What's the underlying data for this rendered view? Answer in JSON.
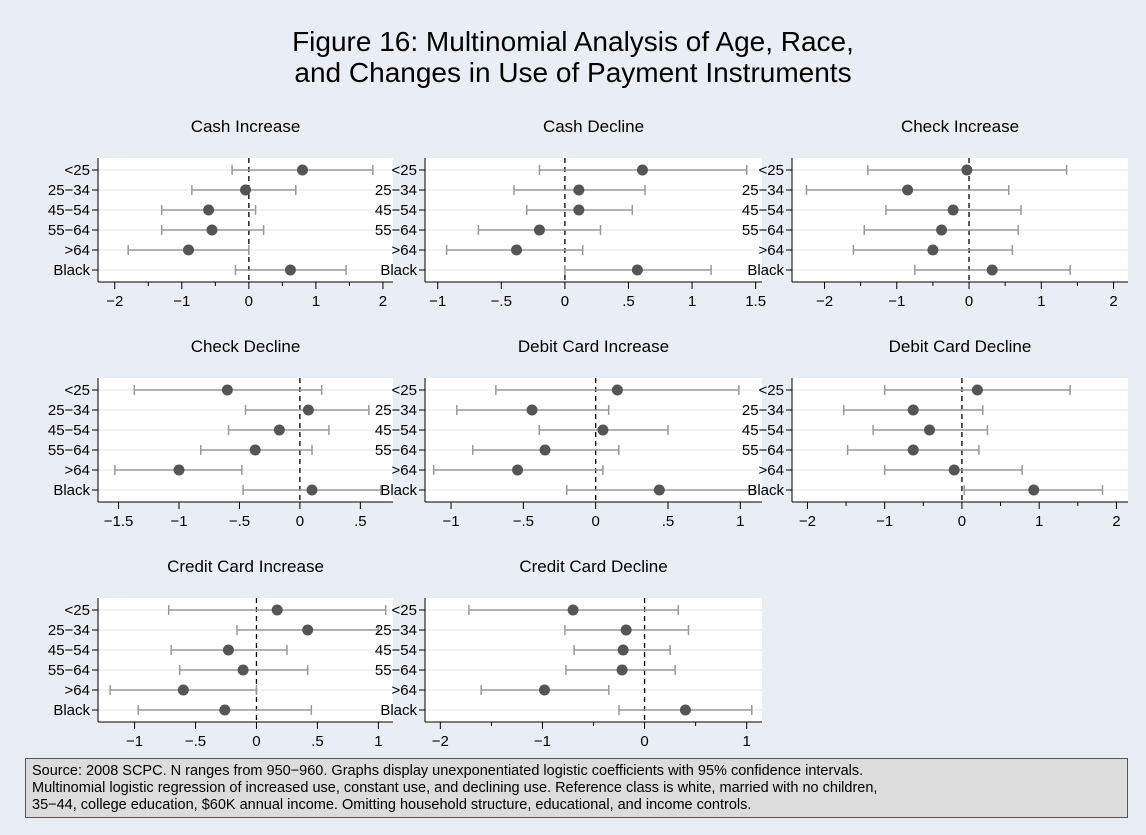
{
  "title": [
    "Figure 16: Multinomial Analysis of Age, Race,",
    "and Changes in Use of Payment Instruments"
  ],
  "note": [
    "Source: 2008 SCPC.  N ranges from 950−960. Graphs display unexponentiated logistic coefficients with 95% confidence intervals.",
    "Multinomial logistic regression of increased use, constant use, and declining use.  Reference class is white, married with no children,",
    "35−44, college education, $60K annual income.  Omitting household structure, educational, and income controls."
  ],
  "colors": {
    "background": "#e8eef3",
    "plot_bg": "#ffffff",
    "marker": "#555555",
    "ci": "#999999",
    "gridline": "#e6e6e6",
    "note_bg": "#dcdcdc"
  },
  "chart_data": [
    {
      "type": "scatter",
      "title": "Cash Increase",
      "categories": [
        "<25",
        "25−34",
        "45−54",
        "55−64",
        ">64",
        "Black"
      ],
      "estimate": [
        0.8,
        -0.05,
        -0.6,
        -0.55,
        -0.9,
        0.62
      ],
      "ci_low": [
        -0.25,
        -0.85,
        -1.3,
        -1.3,
        -1.8,
        -0.2
      ],
      "ci_high": [
        1.85,
        0.7,
        0.1,
        0.22,
        0.0,
        1.45
      ],
      "xlim": [
        -2.25,
        2.15
      ],
      "xticks": [
        -2,
        -1,
        0,
        1,
        2
      ],
      "xticklabels": [
        "−2",
        "−1",
        "0",
        "1",
        "2"
      ],
      "minor_ticks": true
    },
    {
      "type": "scatter",
      "title": "Cash Decline",
      "categories": [
        "<25",
        "25−34",
        "45−54",
        "55−64",
        ">64",
        "Black"
      ],
      "estimate": [
        0.61,
        0.11,
        0.11,
        -0.2,
        -0.38,
        0.57
      ],
      "ci_low": [
        -0.2,
        -0.4,
        -0.3,
        -0.68,
        -0.93,
        0.0
      ],
      "ci_high": [
        1.43,
        0.63,
        0.53,
        0.28,
        0.14,
        1.15
      ],
      "xlim": [
        -1.1,
        1.55
      ],
      "xticks": [
        -1,
        -0.5,
        0,
        0.5,
        1,
        1.5
      ],
      "xticklabels": [
        "−1",
        "−.5",
        "0",
        ".5",
        "1",
        "1.5"
      ],
      "minor_ticks": false
    },
    {
      "type": "scatter",
      "title": "Check Increase",
      "categories": [
        "<25",
        "25−34",
        "45−54",
        "55−64",
        ">64",
        "Black"
      ],
      "estimate": [
        -0.03,
        -0.85,
        -0.22,
        -0.38,
        -0.5,
        0.32
      ],
      "ci_low": [
        -1.4,
        -2.25,
        -1.15,
        -1.45,
        -1.6,
        -0.75
      ],
      "ci_high": [
        1.35,
        0.55,
        0.72,
        0.68,
        0.6,
        1.4
      ],
      "xlim": [
        -2.45,
        2.2
      ],
      "xticks": [
        -2,
        -1,
        0,
        1,
        2
      ],
      "xticklabels": [
        "−2",
        "−1",
        "0",
        "1",
        "2"
      ],
      "minor_ticks": true
    },
    {
      "type": "scatter",
      "title": "Check Decline",
      "categories": [
        "<25",
        "25−34",
        "45−54",
        "55−64",
        ">64",
        "Black"
      ],
      "estimate": [
        -0.6,
        0.07,
        -0.17,
        -0.37,
        -1.0,
        0.1
      ],
      "ci_low": [
        -1.37,
        -0.45,
        -0.59,
        -0.82,
        -1.53,
        -0.47
      ],
      "ci_high": [
        0.18,
        0.57,
        0.24,
        0.1,
        -0.48,
        0.67
      ],
      "xlim": [
        -1.67,
        0.77
      ],
      "xticks": [
        -1.5,
        -1,
        -0.5,
        0,
        0.5
      ],
      "xticklabels": [
        "−1.5",
        "−1",
        "−.5",
        "0",
        ".5"
      ],
      "minor_ticks": false
    },
    {
      "type": "scatter",
      "title": "Debit Card Increase",
      "categories": [
        "<25",
        "25−34",
        "45−54",
        "55−64",
        ">64",
        "Black"
      ],
      "estimate": [
        0.15,
        -0.44,
        0.05,
        -0.35,
        -0.54,
        0.44
      ],
      "ci_low": [
        -0.69,
        -0.96,
        -0.39,
        -0.85,
        -1.12,
        -0.2
      ],
      "ci_high": [
        0.99,
        0.09,
        0.5,
        0.16,
        0.05,
        1.1
      ],
      "xlim": [
        -1.18,
        1.15
      ],
      "xticks": [
        -1,
        -0.5,
        0,
        0.5,
        1
      ],
      "xticklabels": [
        "−1",
        "−.5",
        "0",
        ".5",
        "1"
      ],
      "minor_ticks": false
    },
    {
      "type": "scatter",
      "title": "Debit Card Decline",
      "categories": [
        "<25",
        "25−34",
        "45−54",
        "55−64",
        ">64",
        "Black"
      ],
      "estimate": [
        0.2,
        -0.63,
        -0.42,
        -0.63,
        -0.1,
        0.93
      ],
      "ci_low": [
        -1.0,
        -1.53,
        -1.15,
        -1.48,
        -1.0,
        0.03
      ],
      "ci_high": [
        1.4,
        0.27,
        0.33,
        0.22,
        0.78,
        1.82
      ],
      "xlim": [
        -2.2,
        2.15
      ],
      "xticks": [
        -2,
        -1,
        0,
        1,
        2
      ],
      "xticklabels": [
        "−2",
        "−1",
        "0",
        "1",
        "2"
      ],
      "minor_ticks": true
    },
    {
      "type": "scatter",
      "title": "Credit Card Increase",
      "categories": [
        "<25",
        "25−34",
        "45−54",
        "55−64",
        ">64",
        "Black"
      ],
      "estimate": [
        0.17,
        0.42,
        -0.23,
        -0.11,
        -0.6,
        -0.26
      ],
      "ci_low": [
        -0.72,
        -0.16,
        -0.7,
        -0.63,
        -1.2,
        -0.97
      ],
      "ci_high": [
        1.06,
        1.0,
        0.25,
        0.42,
        0.0,
        0.45
      ],
      "xlim": [
        -1.3,
        1.12
      ],
      "xticks": [
        -1,
        -0.5,
        0,
        0.5,
        1
      ],
      "xticklabels": [
        "−1",
        "−.5",
        "0",
        ".5",
        "1"
      ],
      "minor_ticks": false
    },
    {
      "type": "scatter",
      "title": "Credit Card Decline",
      "categories": [
        "<25",
        "25−34",
        "45−54",
        "55−64",
        ">64",
        "Black"
      ],
      "estimate": [
        -0.7,
        -0.18,
        -0.21,
        -0.22,
        -0.98,
        0.4
      ],
      "ci_low": [
        -1.72,
        -0.78,
        -0.69,
        -0.77,
        -1.6,
        -0.25
      ],
      "ci_high": [
        0.33,
        0.43,
        0.25,
        0.3,
        -0.35,
        1.05
      ],
      "xlim": [
        -2.15,
        1.15
      ],
      "xticks": [
        -2,
        -1,
        0,
        1
      ],
      "xticklabels": [
        "−2",
        "−1",
        "0",
        "1"
      ],
      "minor_ticks": true
    }
  ]
}
